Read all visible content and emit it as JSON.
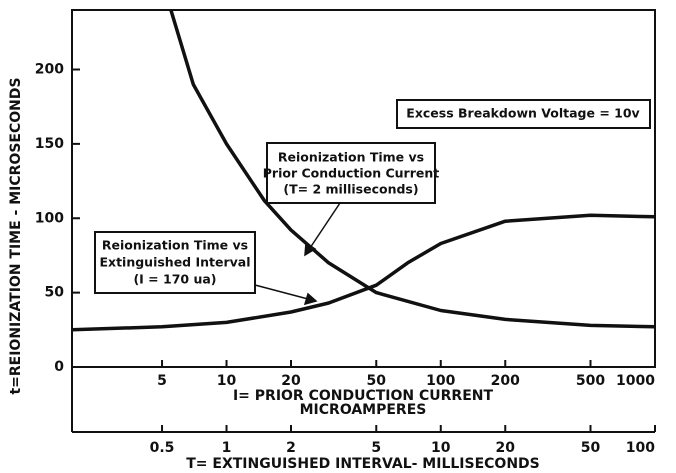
{
  "chart_data": {
    "type": "line",
    "ylabel": "t=REIONIZATION TIME - MICROSECONDS",
    "xlabel": [
      "I= PRIOR CONDUCTION CURRENT",
      "MICROAMPERES"
    ],
    "x2label": "T= EXTINGUISHED INTERVAL- MILLISECONDS",
    "xscale": "log",
    "xlim": [
      1.9,
      1000
    ],
    "xticks": [
      5,
      10,
      20,
      50,
      100,
      200,
      500,
      1000
    ],
    "x2lim": [
      0.19,
      100
    ],
    "x2ticks": [
      0.5,
      1,
      2,
      5,
      10,
      20,
      50,
      100
    ],
    "ylim": [
      0,
      240
    ],
    "yticks": [
      0,
      50,
      100,
      150,
      200
    ],
    "grid": false,
    "color": "#111111",
    "series": [
      {
        "x": [
          5.5,
          7,
          10,
          15,
          20,
          30,
          50,
          100,
          200,
          500,
          1000
        ],
        "values": [
          240,
          190,
          150,
          112,
          92,
          70,
          50,
          38,
          32,
          28,
          27
        ]
      },
      {
        "axis": "x2",
        "x": [
          0.19,
          0.5,
          1,
          2,
          3,
          5,
          7,
          10,
          20,
          50,
          100
        ],
        "values": [
          25,
          27,
          30,
          37,
          43,
          55,
          70,
          83,
          98,
          102,
          101
        ]
      }
    ],
    "annotations": [
      {
        "lines": [
          "Excess Breakdown Voltage = 10v"
        ]
      },
      {
        "lines": [
          "Reionization Time vs",
          "Prior Conduction Current",
          "(T= 2 milliseconds)"
        ]
      },
      {
        "lines": [
          "Reionization Time vs",
          "Extinguished Interval",
          "(I = 170 ua)"
        ]
      }
    ]
  }
}
